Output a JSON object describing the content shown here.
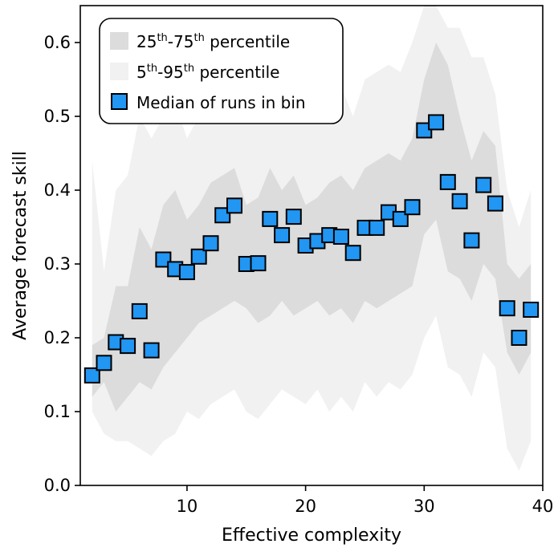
{
  "chart_data": {
    "type": "scatter",
    "xlabel": "Effective complexity",
    "ylabel": "Average forecast skill",
    "xlim": [
      1,
      40
    ],
    "ylim": [
      0,
      0.65
    ],
    "x_ticks": [
      10,
      20,
      30,
      40
    ],
    "y_ticks": [
      0.0,
      0.1,
      0.2,
      0.3,
      0.4,
      0.5,
      0.6
    ],
    "grid": false,
    "legend_position": "top-left",
    "legend": {
      "iqr": {
        "sup": "th",
        "mid": "-75",
        "sup2": "th",
        "tail": " percentile",
        "lead": "25"
      },
      "range": {
        "lead": "5",
        "sup": "th",
        "mid": "-95",
        "sup2": "th",
        "tail": " percentile"
      },
      "median": "Median of runs in bin"
    },
    "colors": {
      "median_marker": "#2196f3",
      "iqr_band": "#dcdcdc",
      "range_band": "#f1f1f1"
    },
    "series": [
      {
        "name": "Median of runs in bin",
        "x": [
          2,
          3,
          4,
          5,
          6,
          7,
          8,
          9,
          10,
          11,
          12,
          13,
          14,
          15,
          16,
          17,
          18,
          19,
          20,
          21,
          22,
          23,
          24,
          25,
          26,
          27,
          28,
          29,
          30,
          31,
          32,
          33,
          34,
          35,
          36,
          37,
          38,
          39
        ],
        "y": [
          0.149,
          0.166,
          0.194,
          0.189,
          0.236,
          0.183,
          0.306,
          0.293,
          0.289,
          0.31,
          0.328,
          0.366,
          0.379,
          0.3,
          0.301,
          0.361,
          0.339,
          0.364,
          0.325,
          0.331,
          0.339,
          0.337,
          0.315,
          0.349,
          0.349,
          0.37,
          0.361,
          0.377,
          0.481,
          0.492,
          0.411,
          0.385,
          0.332,
          0.407,
          0.382,
          0.24,
          0.2,
          0.238
        ]
      },
      {
        "name": "25th-75th percentile",
        "x": [
          2,
          3,
          4,
          5,
          6,
          7,
          8,
          9,
          10,
          11,
          12,
          13,
          14,
          15,
          16,
          17,
          18,
          19,
          20,
          21,
          22,
          23,
          24,
          25,
          26,
          27,
          28,
          29,
          30,
          31,
          32,
          33,
          34,
          35,
          36,
          37,
          38,
          39
        ],
        "lower": [
          0.12,
          0.14,
          0.1,
          0.12,
          0.14,
          0.13,
          0.16,
          0.18,
          0.2,
          0.22,
          0.23,
          0.24,
          0.25,
          0.24,
          0.22,
          0.23,
          0.25,
          0.23,
          0.24,
          0.25,
          0.23,
          0.24,
          0.22,
          0.25,
          0.24,
          0.25,
          0.26,
          0.27,
          0.34,
          0.36,
          0.29,
          0.28,
          0.25,
          0.3,
          0.28,
          0.18,
          0.15,
          0.18
        ],
        "upper": [
          0.19,
          0.2,
          0.27,
          0.27,
          0.35,
          0.32,
          0.38,
          0.4,
          0.36,
          0.38,
          0.41,
          0.42,
          0.43,
          0.38,
          0.39,
          0.43,
          0.4,
          0.42,
          0.38,
          0.39,
          0.41,
          0.42,
          0.4,
          0.43,
          0.44,
          0.45,
          0.44,
          0.47,
          0.55,
          0.6,
          0.57,
          0.5,
          0.44,
          0.48,
          0.46,
          0.3,
          0.28,
          0.3
        ]
      },
      {
        "name": "5th-95th percentile",
        "x": [
          2,
          3,
          4,
          5,
          6,
          7,
          8,
          9,
          10,
          11,
          12,
          13,
          14,
          15,
          16,
          17,
          18,
          19,
          20,
          21,
          22,
          23,
          24,
          25,
          26,
          27,
          28,
          29,
          30,
          31,
          32,
          33,
          34,
          35,
          36,
          37,
          38,
          39
        ],
        "lower": [
          0.1,
          0.07,
          0.06,
          0.06,
          0.05,
          0.04,
          0.06,
          0.07,
          0.1,
          0.09,
          0.11,
          0.12,
          0.13,
          0.1,
          0.09,
          0.11,
          0.13,
          0.12,
          0.11,
          0.13,
          0.1,
          0.12,
          0.1,
          0.14,
          0.12,
          0.14,
          0.13,
          0.15,
          0.2,
          0.23,
          0.16,
          0.15,
          0.12,
          0.18,
          0.16,
          0.05,
          0.02,
          0.06
        ],
        "upper": [
          0.44,
          0.29,
          0.4,
          0.42,
          0.5,
          0.47,
          0.5,
          0.52,
          0.47,
          0.5,
          0.53,
          0.55,
          0.55,
          0.5,
          0.52,
          0.56,
          0.52,
          0.54,
          0.5,
          0.51,
          0.52,
          0.54,
          0.5,
          0.55,
          0.56,
          0.57,
          0.56,
          0.6,
          0.65,
          0.65,
          0.62,
          0.62,
          0.58,
          0.58,
          0.53,
          0.4,
          0.35,
          0.4
        ]
      }
    ]
  }
}
